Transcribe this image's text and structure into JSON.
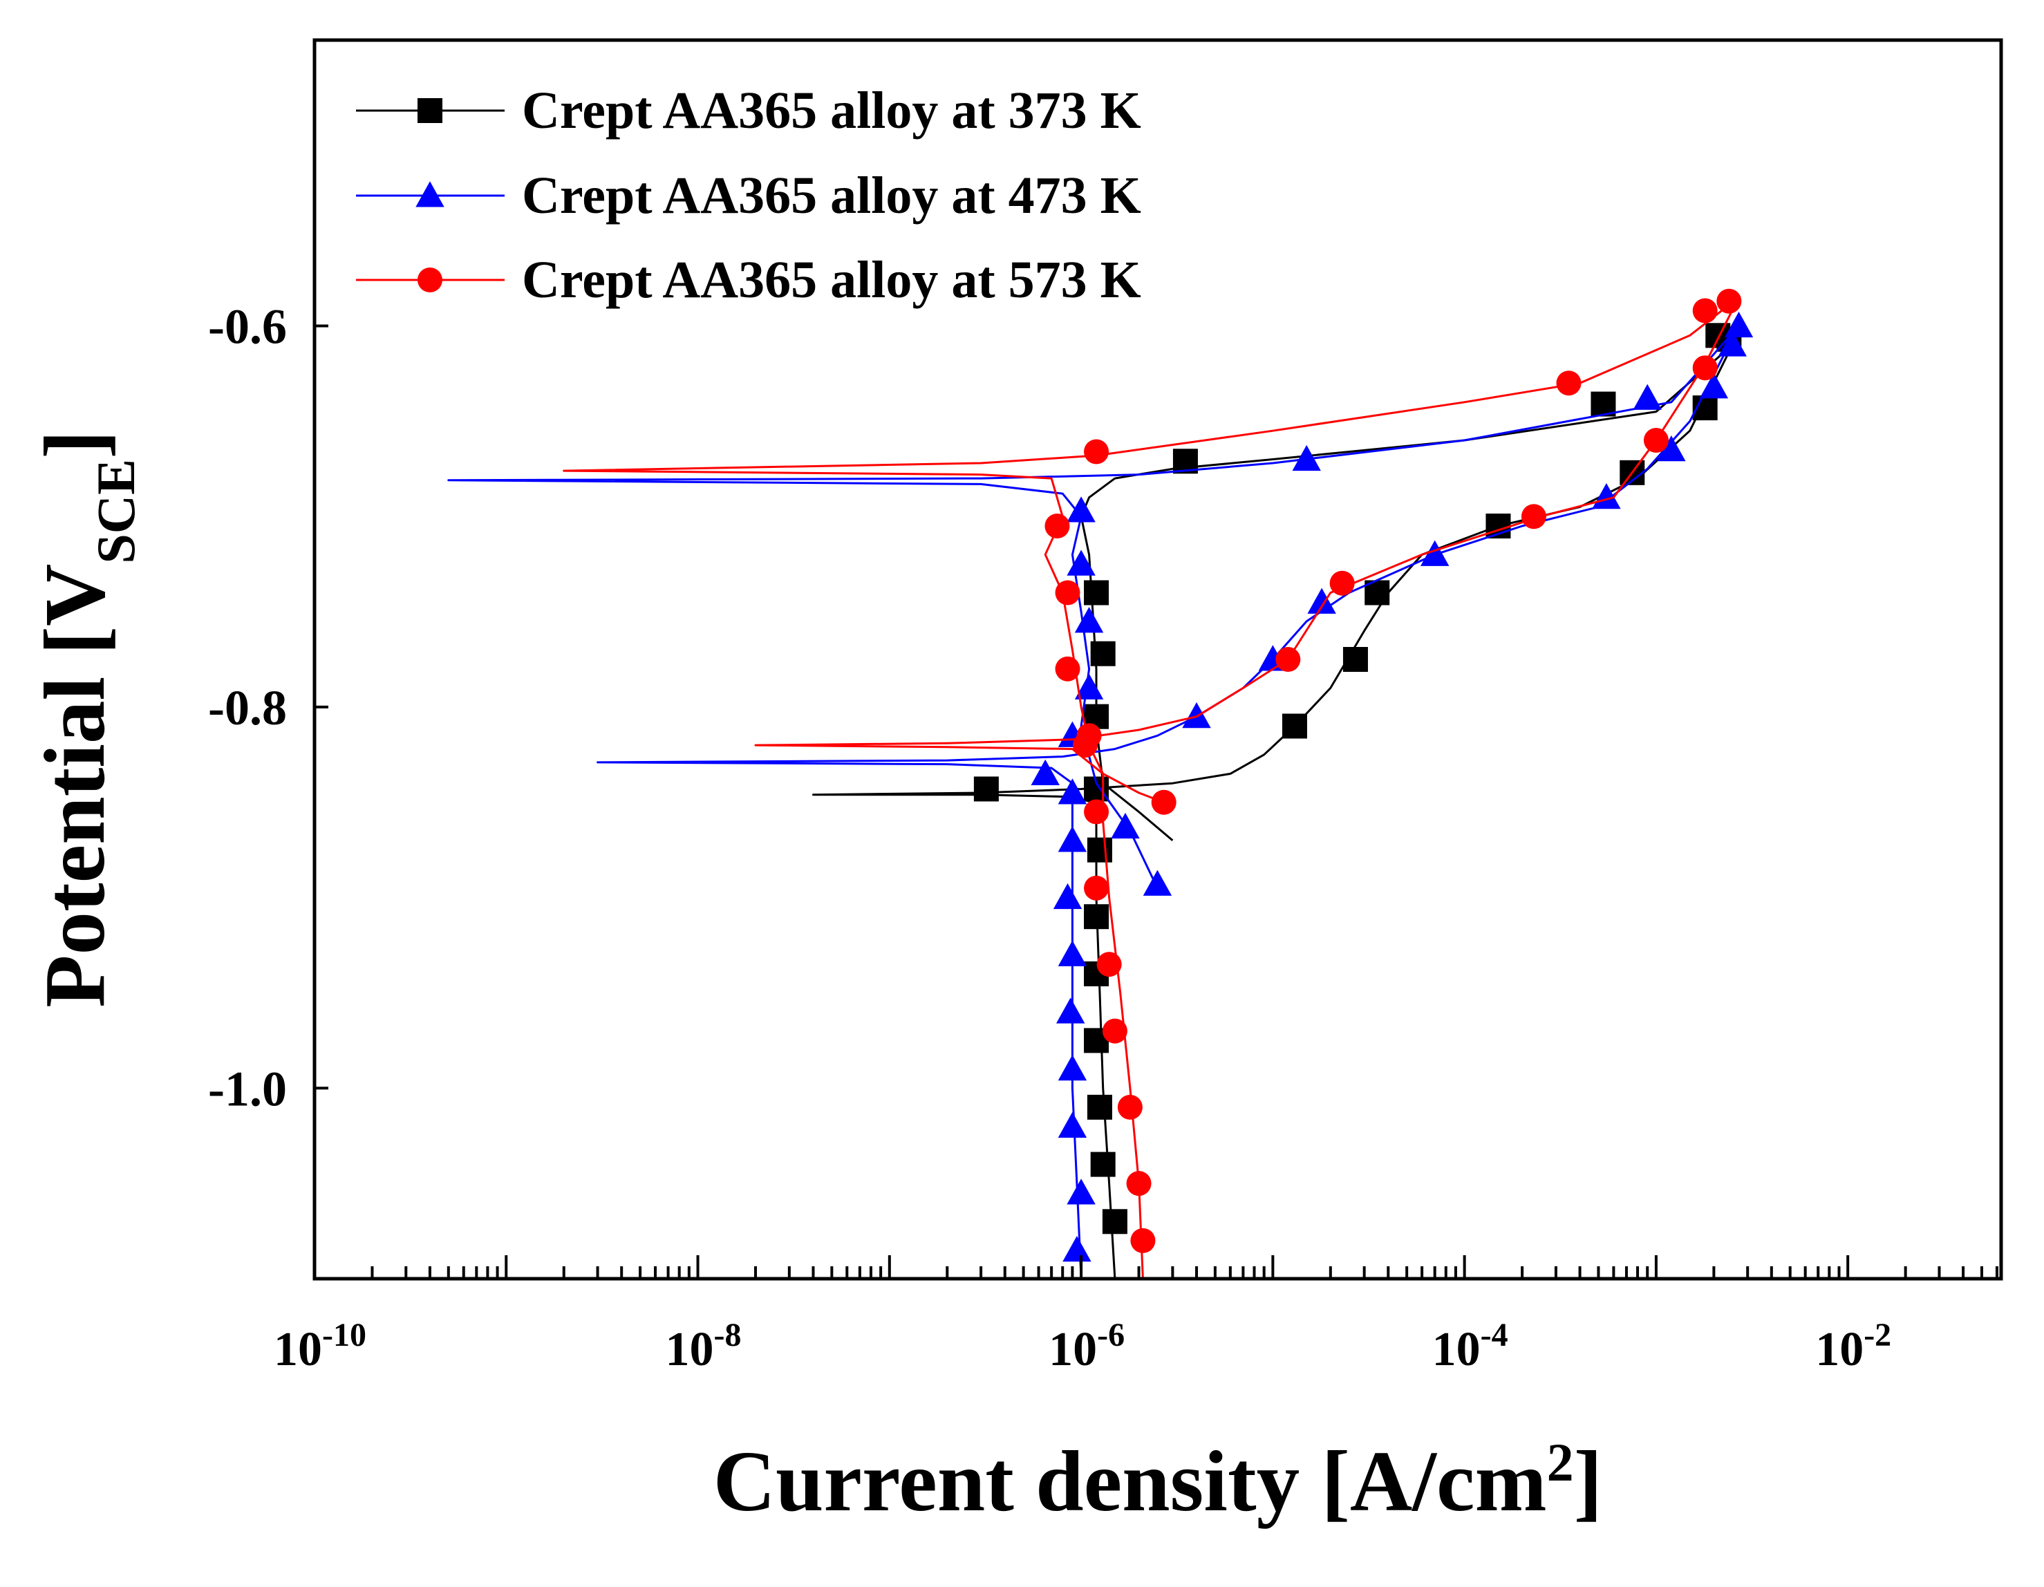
{
  "chart_data": {
    "type": "line",
    "title": "",
    "xlabel": "Current density [A/cm",
    "xlabel_sup": "2",
    "xlabel_end": "]",
    "ylabel": "Potential [V",
    "ylabel_sub": "SCE",
    "ylabel_end": "]",
    "xscale": "log",
    "xlim_exponent": [
      -10,
      -1.2
    ],
    "ylim": [
      -1.1,
      -0.45
    ],
    "x_ticks": [
      {
        "base": "10",
        "exp": "-10",
        "exponent": -10
      },
      {
        "base": "10",
        "exp": "-8",
        "exponent": -8
      },
      {
        "base": "10",
        "exp": "-6",
        "exponent": -6
      },
      {
        "base": "10",
        "exp": "-4",
        "exponent": -4
      },
      {
        "base": "10",
        "exp": "-2",
        "exponent": -2
      }
    ],
    "y_ticks": [
      {
        "label": "-0.6",
        "value": -0.6
      },
      {
        "label": "-0.8",
        "value": -0.8
      },
      {
        "label": "-1.0",
        "value": -1.0
      }
    ],
    "legend_position": "top-left",
    "series": [
      {
        "name": "Crept AA365 alloy at 373 K",
        "color": "#000000",
        "marker": "square",
        "line": [
          [
            1.5e-06,
            -1.1
          ],
          [
            1.4e-06,
            -1.05
          ],
          [
            1.3e-06,
            -1.0
          ],
          [
            1.25e-06,
            -0.95
          ],
          [
            1.2e-06,
            -0.9
          ],
          [
            1.2e-06,
            -0.87
          ],
          [
            1.2e-06,
            -0.85
          ],
          [
            8e-07,
            -0.847
          ],
          [
            3e-07,
            -0.846
          ],
          [
            4e-08,
            -0.846
          ],
          [
            3e-07,
            -0.845
          ],
          [
            1e-06,
            -0.843
          ],
          [
            3e-06,
            -0.84
          ],
          [
            6e-06,
            -0.835
          ],
          [
            9e-06,
            -0.825
          ],
          [
            1.3e-05,
            -0.81
          ],
          [
            2e-05,
            -0.79
          ],
          [
            3e-05,
            -0.76
          ],
          [
            4e-05,
            -0.74
          ],
          [
            6e-05,
            -0.72
          ],
          [
            0.00015,
            -0.705
          ],
          [
            0.0004,
            -0.695
          ],
          [
            0.0008,
            -0.68
          ],
          [
            0.0015,
            -0.655
          ],
          [
            0.0025,
            -0.61
          ],
          [
            0.001,
            -0.645
          ],
          [
            0.0001,
            -0.66
          ],
          [
            1e-05,
            -0.67
          ],
          [
            3e-06,
            -0.675
          ],
          [
            1.5e-06,
            -0.68
          ],
          [
            1.1e-06,
            -0.69
          ],
          [
            1e-06,
            -0.7
          ],
          [
            1.1e-06,
            -0.72
          ],
          [
            1.15e-06,
            -0.75
          ],
          [
            1.2e-06,
            -0.78
          ],
          [
            1.2e-06,
            -0.81
          ],
          [
            1.3e-06,
            -0.84
          ],
          [
            2e-06,
            -0.855
          ],
          [
            3e-06,
            -0.87
          ]
        ],
        "markers": [
          [
            1.5e-06,
            -1.07
          ],
          [
            1.3e-06,
            -1.04
          ],
          [
            1.25e-06,
            -1.01
          ],
          [
            1.2e-06,
            -0.975
          ],
          [
            1.2e-06,
            -0.94
          ],
          [
            1.2e-06,
            -0.91
          ],
          [
            1.25e-06,
            -0.875
          ],
          [
            1.2e-06,
            -0.843
          ],
          [
            3.2e-07,
            -0.843
          ],
          [
            1.2e-06,
            -0.805
          ],
          [
            1.3e-06,
            -0.772
          ],
          [
            1.2e-06,
            -0.74
          ],
          [
            1.3e-05,
            -0.81
          ],
          [
            2.7e-05,
            -0.775
          ],
          [
            3.5e-05,
            -0.74
          ],
          [
            0.00015,
            -0.705
          ],
          [
            0.00075,
            -0.677
          ],
          [
            0.0018,
            -0.643
          ],
          [
            0.0024,
            -0.607
          ],
          [
            0.0021,
            -0.605
          ],
          [
            0.00053,
            -0.641
          ],
          [
            3.5e-06,
            -0.671
          ]
        ]
      },
      {
        "name": "Crept AA365 alloy at 473 K",
        "color": "#0000ff",
        "marker": "triangle",
        "line": [
          [
            1e-06,
            -1.1
          ],
          [
            9.5e-07,
            -1.05
          ],
          [
            9e-07,
            -1.0
          ],
          [
            9e-07,
            -0.95
          ],
          [
            9e-07,
            -0.9
          ],
          [
            9e-07,
            -0.86
          ],
          [
            9e-07,
            -0.84
          ],
          [
            7e-07,
            -0.832
          ],
          [
            2e-07,
            -0.83
          ],
          [
            3e-09,
            -0.829
          ],
          [
            2e-07,
            -0.828
          ],
          [
            8e-07,
            -0.826
          ],
          [
            1.5e-06,
            -0.822
          ],
          [
            2.5e-06,
            -0.815
          ],
          [
            4e-06,
            -0.805
          ],
          [
            7e-06,
            -0.79
          ],
          [
            1e-05,
            -0.775
          ],
          [
            1.5e-05,
            -0.755
          ],
          [
            2.5e-05,
            -0.74
          ],
          [
            7e-05,
            -0.72
          ],
          [
            0.0002,
            -0.705
          ],
          [
            0.0005,
            -0.695
          ],
          [
            0.0009,
            -0.675
          ],
          [
            0.0015,
            -0.65
          ],
          [
            0.0027,
            -0.6
          ],
          [
            0.0012,
            -0.64
          ],
          [
            0.0001,
            -0.66
          ],
          [
            1e-05,
            -0.672
          ],
          [
            2e-06,
            -0.678
          ],
          [
            3e-07,
            -0.68
          ],
          [
            5e-10,
            -0.681
          ],
          [
            3e-07,
            -0.683
          ],
          [
            8e-07,
            -0.688
          ],
          [
            1e-06,
            -0.7
          ],
          [
            9e-07,
            -0.72
          ],
          [
            1e-06,
            -0.75
          ],
          [
            1.1e-06,
            -0.78
          ],
          [
            1e-06,
            -0.81
          ],
          [
            1.2e-06,
            -0.84
          ],
          [
            1.8e-06,
            -0.865
          ],
          [
            2.5e-06,
            -0.895
          ]
        ],
        "markers": [
          [
            9.5e-07,
            -1.085
          ],
          [
            1e-06,
            -1.055
          ],
          [
            9e-07,
            -1.02
          ],
          [
            9e-07,
            -0.99
          ],
          [
            8.8e-07,
            -0.96
          ],
          [
            9e-07,
            -0.93
          ],
          [
            8.5e-07,
            -0.9
          ],
          [
            9e-07,
            -0.87
          ],
          [
            9e-07,
            -0.845
          ],
          [
            6.5e-07,
            -0.835
          ],
          [
            1.7e-06,
            -0.863
          ],
          [
            2.5e-06,
            -0.893
          ],
          [
            9e-07,
            -0.815
          ],
          [
            1.1e-06,
            -0.79
          ],
          [
            1.1e-06,
            -0.755
          ],
          [
            1e-06,
            -0.725
          ],
          [
            1e-06,
            -0.697
          ],
          [
            4e-06,
            -0.805
          ],
          [
            1e-05,
            -0.775
          ],
          [
            1.8e-05,
            -0.745
          ],
          [
            7e-05,
            -0.72
          ],
          [
            0.00055,
            -0.69
          ],
          [
            0.0012,
            -0.665
          ],
          [
            0.002,
            -0.632
          ],
          [
            0.0025,
            -0.61
          ],
          [
            0.0027,
            -0.6
          ],
          [
            0.0009,
            -0.638
          ],
          [
            1.5e-05,
            -0.67
          ]
        ]
      },
      {
        "name": "Crept AA365 alloy at 573 K",
        "color": "#ff0000",
        "marker": "circle",
        "line": [
          [
            2.1e-06,
            -1.1
          ],
          [
            2e-06,
            -1.05
          ],
          [
            1.8e-06,
            -1.0
          ],
          [
            1.6e-06,
            -0.95
          ],
          [
            1.4e-06,
            -0.9
          ],
          [
            1.3e-06,
            -0.86
          ],
          [
            1.3e-06,
            -0.835
          ],
          [
            9e-07,
            -0.822
          ],
          [
            2e-07,
            -0.821
          ],
          [
            2e-08,
            -0.82
          ],
          [
            2e-07,
            -0.819
          ],
          [
            9e-07,
            -0.817
          ],
          [
            2e-06,
            -0.812
          ],
          [
            4e-06,
            -0.805
          ],
          [
            7e-06,
            -0.79
          ],
          [
            1.2e-05,
            -0.775
          ],
          [
            2e-05,
            -0.74
          ],
          [
            6e-05,
            -0.72
          ],
          [
            0.00025,
            -0.7
          ],
          [
            0.0006,
            -0.69
          ],
          [
            0.001,
            -0.66
          ],
          [
            0.0018,
            -0.62
          ],
          [
            0.0027,
            -0.585
          ],
          [
            0.0015,
            -0.605
          ],
          [
            0.0004,
            -0.63
          ],
          [
            0.0001,
            -0.64
          ],
          [
            1e-05,
            -0.655
          ],
          [
            1.2e-06,
            -0.668
          ],
          [
            3e-07,
            -0.672
          ],
          [
            2e-09,
            -0.676
          ],
          [
            3e-07,
            -0.678
          ],
          [
            7e-07,
            -0.68
          ],
          [
            8e-07,
            -0.7
          ],
          [
            6.5e-07,
            -0.72
          ],
          [
            8e-07,
            -0.74
          ],
          [
            9e-07,
            -0.77
          ],
          [
            1e-06,
            -0.8
          ],
          [
            1.1e-06,
            -0.82
          ],
          [
            1.3e-06,
            -0.835
          ],
          [
            2e-06,
            -0.845
          ],
          [
            2.7e-06,
            -0.85
          ]
        ],
        "markers": [
          [
            2.1e-06,
            -1.08
          ],
          [
            2e-06,
            -1.05
          ],
          [
            1.8e-06,
            -1.01
          ],
          [
            1.5e-06,
            -0.97
          ],
          [
            1.4e-06,
            -0.935
          ],
          [
            1.2e-06,
            -0.895
          ],
          [
            1.2e-06,
            -0.855
          ],
          [
            2.7e-06,
            -0.85
          ],
          [
            1.05e-06,
            -0.82
          ],
          [
            1.1e-06,
            -0.815
          ],
          [
            8.5e-07,
            -0.78
          ],
          [
            8.5e-07,
            -0.74
          ],
          [
            7.5e-07,
            -0.705
          ],
          [
            1.2e-05,
            -0.775
          ],
          [
            2.3e-05,
            -0.735
          ],
          [
            0.00023,
            -0.7
          ],
          [
            0.001,
            -0.66
          ],
          [
            0.0018,
            -0.622
          ],
          [
            0.0018,
            -0.592
          ],
          [
            0.0024,
            -0.587
          ],
          [
            0.00035,
            -0.63
          ],
          [
            1.2e-06,
            -0.666
          ]
        ]
      }
    ]
  }
}
